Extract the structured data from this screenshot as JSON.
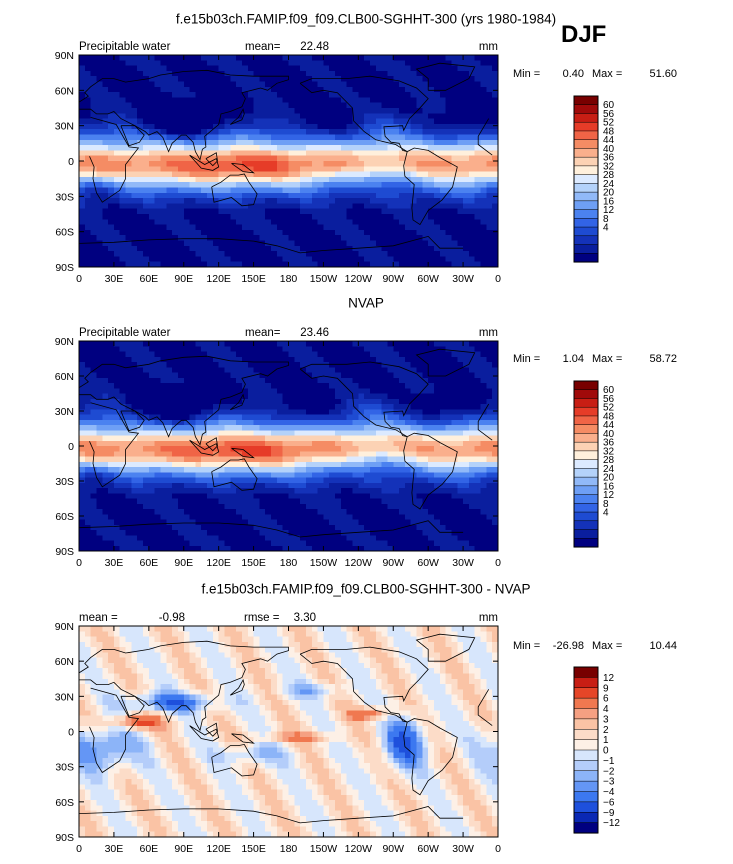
{
  "header": {
    "season": "DJF"
  },
  "chart_data": [
    {
      "type": "heatmap",
      "title": "f.e15b03ch.FAMIP.f09_f09.CLB00-SGHHT-300 (yrs 1980-1984)",
      "left_label": "Precipitable water",
      "stat1_label": "mean=",
      "stat1_value": "22.48",
      "stat2_label": "",
      "stat2_value": "",
      "units": "mm",
      "min_label": "Min =",
      "min_value": "0.40",
      "max_label": "Max =",
      "max_value": "51.60",
      "y_ticks": [
        "90N",
        "60N",
        "30N",
        "0",
        "30S",
        "60S",
        "90S"
      ],
      "x_ticks": [
        "0",
        "30E",
        "60E",
        "90E",
        "120E",
        "150E",
        "180",
        "150W",
        "120W",
        "90W",
        "60W",
        "30W",
        "0"
      ],
      "colorbar": {
        "labels": [
          "60",
          "56",
          "52",
          "48",
          "44",
          "40",
          "36",
          "32",
          "28",
          "24",
          "20",
          "16",
          "12",
          "8",
          "4"
        ],
        "colors": [
          "#000080",
          "#0a1e9e",
          "#1432b9",
          "#1e4bd2",
          "#3264e6",
          "#4b82f0",
          "#6e9ff5",
          "#91b9f8",
          "#b4d2fa",
          "#dceaff",
          "#fff0dc",
          "#fcd2b4",
          "#faaf8c",
          "#f58c64",
          "#f06446",
          "#e63c28",
          "#c81e14",
          "#a00a0a",
          "#780000"
        ]
      }
    },
    {
      "type": "heatmap",
      "title": "NVAP",
      "left_label": "Precipitable water",
      "stat1_label": "mean=",
      "stat1_value": "23.46",
      "stat2_label": "",
      "stat2_value": "",
      "units": "mm",
      "min_label": "Min =",
      "min_value": "1.04",
      "max_label": "Max =",
      "max_value": "58.72",
      "y_ticks": [
        "90N",
        "60N",
        "30N",
        "0",
        "30S",
        "60S",
        "90S"
      ],
      "x_ticks": [
        "0",
        "30E",
        "60E",
        "90E",
        "120E",
        "150E",
        "180",
        "150W",
        "120W",
        "90W",
        "60W",
        "30W",
        "0"
      ],
      "colorbar": {
        "labels": [
          "60",
          "56",
          "52",
          "48",
          "44",
          "40",
          "36",
          "32",
          "28",
          "24",
          "20",
          "16",
          "12",
          "8",
          "4"
        ],
        "colors": [
          "#000080",
          "#0a1e9e",
          "#1432b9",
          "#1e4bd2",
          "#3264e6",
          "#4b82f0",
          "#6e9ff5",
          "#91b9f8",
          "#b4d2fa",
          "#dceaff",
          "#fff0dc",
          "#fcd2b4",
          "#faaf8c",
          "#f58c64",
          "#f06446",
          "#e63c28",
          "#c81e14",
          "#a00a0a",
          "#780000"
        ]
      }
    },
    {
      "type": "heatmap",
      "title": "f.e15b03ch.FAMIP.f09_f09.CLB00-SGHHT-300 - NVAP",
      "left_label": "",
      "stat1_label": "mean =",
      "stat1_value": "-0.98",
      "stat2_label": "rmse =",
      "stat2_value": "3.30",
      "units": "mm",
      "min_label": "Min =",
      "min_value": "-26.98",
      "max_label": "Max =",
      "max_value": "10.44",
      "y_ticks": [
        "90N",
        "60N",
        "30N",
        "0",
        "30S",
        "60S",
        "90S"
      ],
      "x_ticks": [
        "0",
        "30E",
        "60E",
        "90E",
        "120E",
        "150E",
        "180",
        "150W",
        "120W",
        "90W",
        "60W",
        "30W",
        "0"
      ],
      "colorbar": {
        "labels": [
          "12",
          "9",
          "6",
          "4",
          "3",
          "2",
          "1",
          "0",
          "−1",
          "−2",
          "−3",
          "−4",
          "−6",
          "−9",
          "−12"
        ],
        "colors": [
          "#000080",
          "#0a28b4",
          "#1e50dc",
          "#3c78f0",
          "#6496f5",
          "#8cb4f8",
          "#b4cdfa",
          "#d7e6fc",
          "#fdf0e6",
          "#fcdcc8",
          "#fac3a5",
          "#f5a082",
          "#f07850",
          "#e64628",
          "#c81e14",
          "#780000"
        ]
      }
    }
  ]
}
